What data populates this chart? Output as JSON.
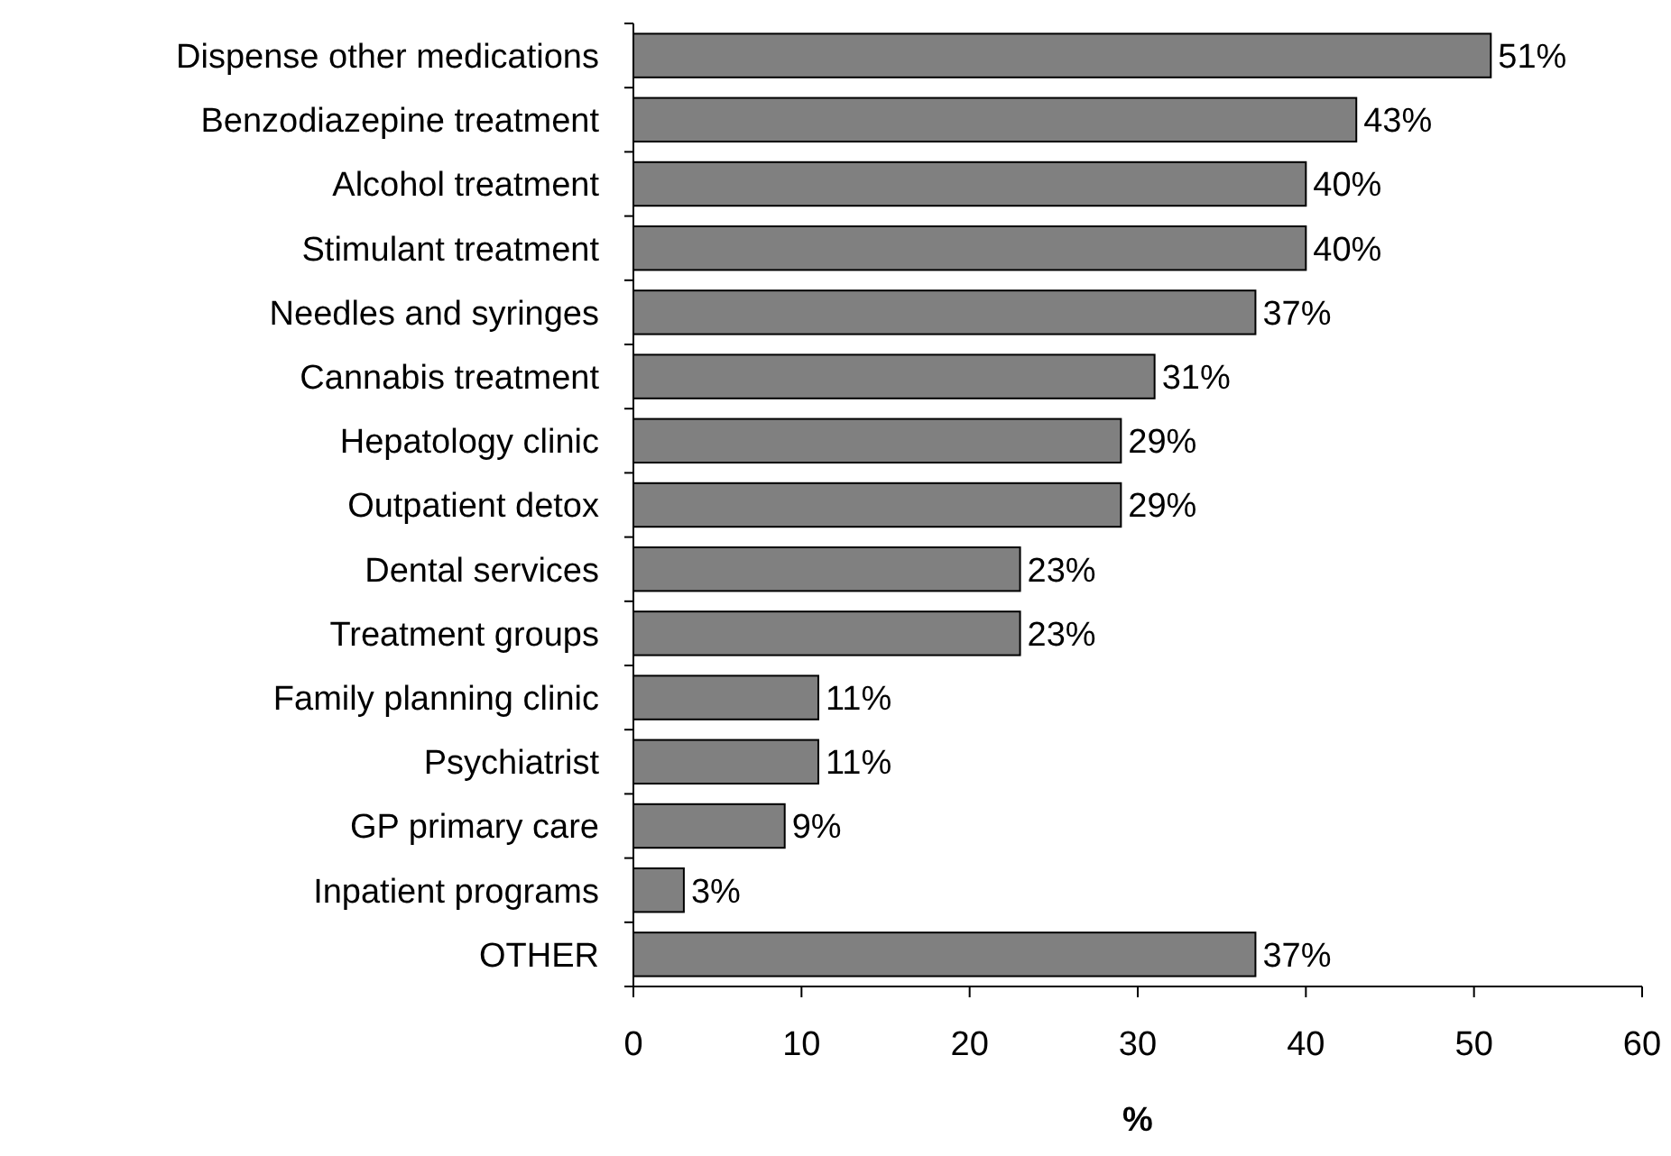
{
  "chart_data": {
    "type": "bar",
    "orientation": "horizontal",
    "xlabel": "%",
    "categories": [
      "Dispense other medications",
      "Benzodiazepine treatment",
      "Alcohol treatment",
      "Stimulant treatment",
      "Needles and syringes",
      "Cannabis treatment",
      "Hepatology clinic",
      "Outpatient detox",
      "Dental services",
      "Treatment groups",
      "Family planning clinic",
      "Psychiatrist",
      "GP primary care",
      "Inpatient programs",
      "OTHER"
    ],
    "values": [
      51,
      43,
      40,
      40,
      37,
      31,
      29,
      29,
      23,
      23,
      11,
      11,
      9,
      3,
      37
    ],
    "value_labels": [
      "51%",
      "43%",
      "40%",
      "40%",
      "37%",
      "31%",
      "29%",
      "29%",
      "23%",
      "23%",
      "11%",
      "11%",
      "9%",
      "3%",
      "37%"
    ],
    "color": "#808080",
    "xlim": [
      0,
      60
    ],
    "xticks": [
      0,
      10,
      20,
      30,
      40,
      50,
      60
    ],
    "grid": false
  }
}
